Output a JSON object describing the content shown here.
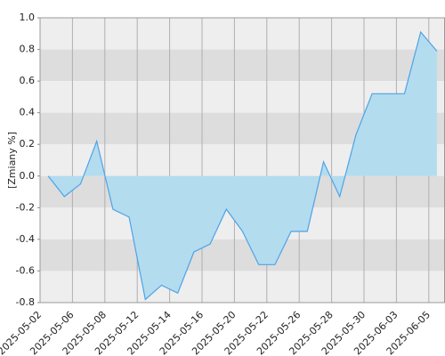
{
  "chart_data": {
    "type": "area",
    "y_label": "[Zmiany %]",
    "x_labels": [
      "2025-05-02",
      "2025-05-06",
      "2025-05-08",
      "2025-05-12",
      "2025-05-14",
      "2025-05-16",
      "2025-05-20",
      "2025-05-22",
      "2025-05-26",
      "2025-05-28",
      "2025-05-30",
      "2025-06-03",
      "2025-06-05"
    ],
    "values": [
      0.0,
      -0.13,
      -0.05,
      0.22,
      -0.21,
      -0.26,
      -0.78,
      -0.69,
      -0.74,
      -0.48,
      -0.43,
      -0.21,
      -0.35,
      -0.56,
      -0.56,
      -0.35,
      -0.35,
      0.09,
      -0.13,
      0.26,
      0.52,
      0.52,
      0.52,
      0.91,
      0.79
    ],
    "color": "#4da3e6",
    "fill": "#b3dcef",
    "ylim": [
      -0.8,
      1.0
    ],
    "yticks": [
      {
        "value": 1.0,
        "label": "1.0"
      },
      0.8,
      0.6,
      0.4,
      0.2,
      {
        "value": 0.0,
        "label": "0.0"
      },
      -0.2,
      -0.4,
      -0.6,
      -0.8
    ],
    "grid": true
  }
}
